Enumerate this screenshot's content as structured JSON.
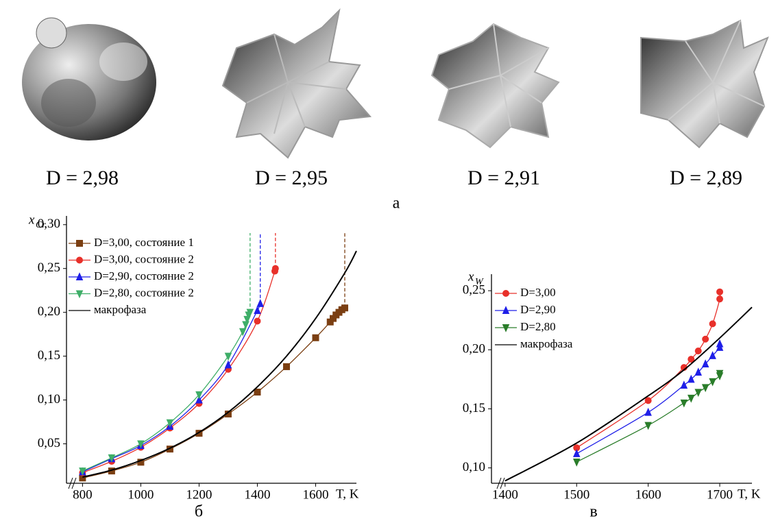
{
  "images": {
    "captions": [
      "D = 2,98",
      "D = 2,95",
      "D = 2,91",
      "D = 2,89"
    ],
    "label": "а"
  },
  "chart_data": [
    {
      "type": "line",
      "caption": "б",
      "xlabel": "T, K",
      "ylabel": "x",
      "ylabel_sub": "Cr",
      "xlim": [
        745,
        1740
      ],
      "ylim": [
        0.005,
        0.31
      ],
      "xticks": [
        800,
        1000,
        1200,
        1400,
        1600
      ],
      "yticks": [
        {
          "value": 0.05,
          "label": "0,05"
        },
        {
          "value": 0.1,
          "label": "0,10"
        },
        {
          "value": 0.15,
          "label": "0,15"
        },
        {
          "value": 0.2,
          "label": "0,20"
        },
        {
          "value": 0.25,
          "label": "0,25"
        },
        {
          "value": 0.3,
          "label": "0,30"
        }
      ],
      "series": [
        {
          "name": "D=3,00, состояние 1",
          "color": "#7b3f12",
          "marker": "square",
          "limit": 1700,
          "x": [
            800,
            900,
            1000,
            1100,
            1200,
            1300,
            1400,
            1500,
            1600,
            1650,
            1660,
            1670,
            1680,
            1690,
            1700
          ],
          "values": [
            0.011,
            0.019,
            0.029,
            0.044,
            0.062,
            0.084,
            0.109,
            0.138,
            0.171,
            0.189,
            0.193,
            0.197,
            0.2,
            0.203,
            0.205
          ]
        },
        {
          "name": "D=3,00, состояние 2",
          "color": "#e8302a",
          "marker": "circle",
          "limit": 1462,
          "x": [
            800,
            900,
            1000,
            1100,
            1200,
            1300,
            1400,
            1460,
            1462
          ],
          "values": [
            0.017,
            0.03,
            0.046,
            0.068,
            0.096,
            0.135,
            0.19,
            0.247,
            0.25
          ]
        },
        {
          "name": "D=2,90, состояние 2",
          "color": "#1f1fe8",
          "marker": "triangle-up",
          "limit": 1410,
          "x": [
            800,
            900,
            1000,
            1100,
            1200,
            1300,
            1400,
            1410
          ],
          "values": [
            0.018,
            0.033,
            0.048,
            0.07,
            0.1,
            0.14,
            0.202,
            0.21
          ]
        },
        {
          "name": "D=2,80, состояние 2",
          "color": "#3fae68",
          "marker": "triangle-down",
          "limit": 1375,
          "x": [
            800,
            900,
            1000,
            1100,
            1200,
            1300,
            1350,
            1360,
            1365,
            1370,
            1375
          ],
          "values": [
            0.019,
            0.034,
            0.05,
            0.074,
            0.106,
            0.15,
            0.178,
            0.186,
            0.192,
            0.197,
            0.2
          ]
        },
        {
          "name": "макрофаза",
          "color": "#000000",
          "x": [
            800,
            900,
            1000,
            1100,
            1200,
            1300,
            1400,
            1500,
            1600,
            1700,
            1740
          ],
          "values": [
            0.012,
            0.02,
            0.031,
            0.045,
            0.063,
            0.086,
            0.115,
            0.15,
            0.193,
            0.245,
            0.27
          ]
        }
      ]
    },
    {
      "type": "line",
      "caption": "в",
      "xlabel": "T, K",
      "ylabel": "x",
      "ylabel_sub": "W",
      "xlim": [
        1381,
        1745
      ],
      "ylim": [
        0.087,
        0.264
      ],
      "xticks": [
        1400,
        1500,
        1600,
        1700
      ],
      "yticks": [
        {
          "value": 0.1,
          "label": "0,10"
        },
        {
          "value": 0.15,
          "label": "0,15"
        },
        {
          "value": 0.2,
          "label": "0,20"
        },
        {
          "value": 0.25,
          "label": "0,25"
        }
      ],
      "series": [
        {
          "name": "D=3,00",
          "color": "#e8302a",
          "marker": "circle",
          "x": [
            1500,
            1600,
            1650,
            1660,
            1670,
            1680,
            1690,
            1700,
            1700
          ],
          "values": [
            0.117,
            0.157,
            0.185,
            0.192,
            0.199,
            0.209,
            0.222,
            0.243,
            0.249
          ]
        },
        {
          "name": "D=2,90",
          "color": "#1f1fe8",
          "marker": "triangle-up",
          "x": [
            1500,
            1600,
            1650,
            1660,
            1670,
            1680,
            1690,
            1700,
            1700
          ],
          "values": [
            0.112,
            0.147,
            0.17,
            0.175,
            0.181,
            0.188,
            0.195,
            0.202,
            0.205
          ]
        },
        {
          "name": "D=2,80",
          "color": "#2a7d2a",
          "marker": "triangle-down",
          "x": [
            1500,
            1600,
            1650,
            1660,
            1670,
            1680,
            1690,
            1700,
            1700
          ],
          "values": [
            0.105,
            0.136,
            0.155,
            0.159,
            0.164,
            0.168,
            0.173,
            0.178,
            0.18
          ]
        },
        {
          "name": "макрофаза",
          "color": "#000000",
          "x": [
            1400,
            1500,
            1600,
            1650,
            1700,
            1745
          ],
          "values": [
            0.089,
            0.121,
            0.161,
            0.183,
            0.21,
            0.236
          ]
        }
      ]
    }
  ]
}
